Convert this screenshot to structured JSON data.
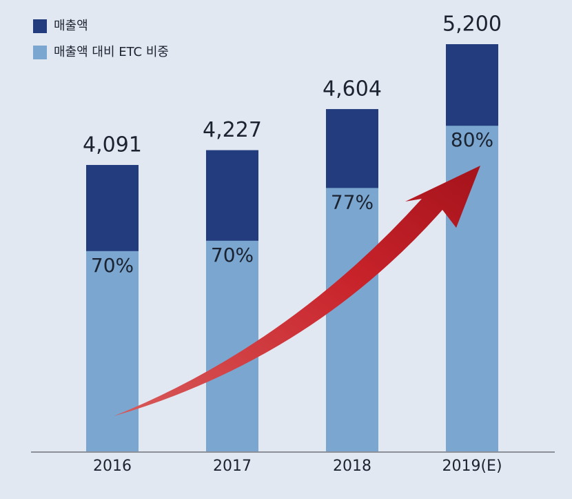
{
  "chart_data": {
    "type": "bar",
    "categories": [
      "2016",
      "2017",
      "2018",
      "2019(E)"
    ],
    "series": [
      {
        "name": "매출액",
        "color": "#233c7e",
        "values": [
          4091,
          4227,
          4604,
          5200
        ],
        "value_labels": [
          "4,091",
          "4,227",
          "4,604",
          "5,200"
        ]
      },
      {
        "name": "매출액 대비 ETC 비중",
        "color": "#7aa6cf",
        "values": [
          70,
          70,
          77,
          80
        ],
        "value_labels": [
          "70%",
          "70%",
          "77%",
          "80%"
        ]
      }
    ],
    "ylim": [
      1455,
      5200
    ]
  }
}
